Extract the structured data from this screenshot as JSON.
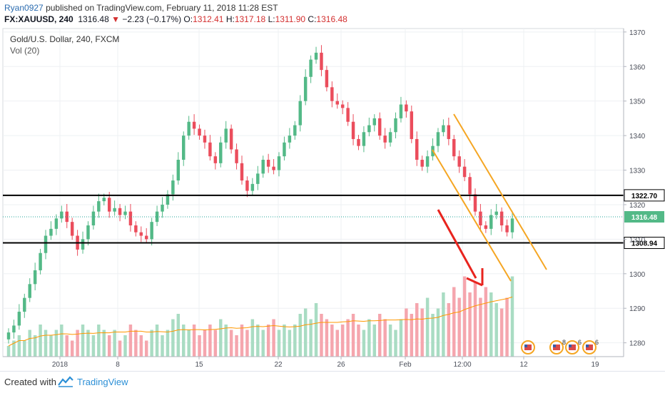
{
  "header": {
    "username": "Ryan0927",
    "published_text": "published on TradingView.com, February 11, 2018 11:28 EST",
    "symbol": "FX:XAUUSD, 240",
    "last": "1316.48",
    "change_arrow": "▼",
    "change": "−2.23 (−0.17%)",
    "o_label": "O:",
    "o_value": "1312.41",
    "h_label": "H:",
    "h_value": "1317.18",
    "l_label": "L:",
    "l_value": "1311.90",
    "c_label": "C:",
    "c_value": "1316.48"
  },
  "panel": {
    "title": "Gold/U.S. Dollar, 240, FXCM",
    "volume_label": "Vol (20)"
  },
  "footer": {
    "created_with": "Created with",
    "brand": "TradingView"
  },
  "colors": {
    "up": "#53b987",
    "down": "#eb4d5c",
    "vol_up": "#a9dcc3",
    "vol_down": "#f5a6ae",
    "level_line": "#000000",
    "channel": "#f5a623",
    "arrow": "#e8241e",
    "price_dotted": "#26a69a",
    "vol_ma": "#ff9800",
    "grid": "#eef0f3"
  },
  "chart_data": {
    "type": "candlestick",
    "title": "Gold/U.S. Dollar, 240, FXCM",
    "y_axis": {
      "min": 1276,
      "max": 1371,
      "ticks": [
        1280,
        1290,
        1300,
        1310,
        1320,
        1330,
        1340,
        1350,
        1360,
        1370
      ]
    },
    "x_tick_labels": [
      "2018",
      "8",
      "15",
      "22",
      "26",
      "Feb",
      "12:00",
      "12",
      "19"
    ],
    "horizontal_levels": [
      {
        "value": 1322.7,
        "label": "1322.70"
      },
      {
        "value": 1308.94,
        "label": "1308.94"
      }
    ],
    "last_price": {
      "value": 1316.48,
      "label": "1316.48"
    },
    "close_series_approx": [
      1283,
      1285,
      1289,
      1293,
      1297,
      1301,
      1306,
      1311,
      1313,
      1316,
      1318,
      1315,
      1311,
      1307,
      1310,
      1314,
      1318,
      1321,
      1322,
      1318,
      1319,
      1317,
      1318,
      1314,
      1312,
      1311,
      1310,
      1315,
      1318,
      1320,
      1323,
      1327,
      1333,
      1340,
      1344,
      1342,
      1340,
      1338,
      1334,
      1332,
      1338,
      1342,
      1336,
      1332,
      1327,
      1324,
      1326,
      1329,
      1333,
      1331,
      1330,
      1334,
      1338,
      1340,
      1343,
      1350,
      1357,
      1362,
      1364,
      1359,
      1354,
      1350,
      1349,
      1348,
      1344,
      1339,
      1337,
      1341,
      1343,
      1345,
      1340,
      1338,
      1341,
      1345,
      1349,
      1347,
      1339,
      1333,
      1331,
      1334,
      1337,
      1341,
      1343,
      1339,
      1334,
      1331,
      1328,
      1323,
      1318,
      1314,
      1313,
      1317,
      1318,
      1314,
      1312,
      1316
    ],
    "volume_series_approx": [
      2,
      3,
      4,
      3,
      5,
      4,
      6,
      5,
      4,
      5,
      6,
      4,
      3,
      5,
      6,
      5,
      4,
      6,
      5,
      4,
      5,
      3,
      4,
      6,
      5,
      4,
      3,
      5,
      6,
      4,
      5,
      7,
      8,
      6,
      5,
      6,
      4,
      5,
      6,
      5,
      7,
      6,
      5,
      4,
      6,
      5,
      7,
      6,
      5,
      6,
      7,
      5,
      6,
      5,
      6,
      8,
      9,
      7,
      10,
      8,
      7,
      6,
      5,
      6,
      7,
      8,
      6,
      5,
      7,
      6,
      8,
      7,
      6,
      5,
      7,
      9,
      8,
      10,
      9,
      11,
      8,
      9,
      12,
      10,
      13,
      11,
      15,
      12,
      14,
      11,
      13,
      12,
      10,
      9,
      11,
      15
    ],
    "annotations": [
      {
        "type": "downtrend-channel",
        "color": "#f5a623"
      },
      {
        "type": "arrow",
        "direction": "down",
        "color": "#e8241e"
      }
    ],
    "event_markers": [
      {
        "label": "",
        "kind": "flag"
      },
      {
        "label": "8",
        "kind": "flag"
      },
      {
        "label": "6",
        "kind": "flag"
      },
      {
        "label": "6",
        "kind": "flag"
      }
    ]
  }
}
